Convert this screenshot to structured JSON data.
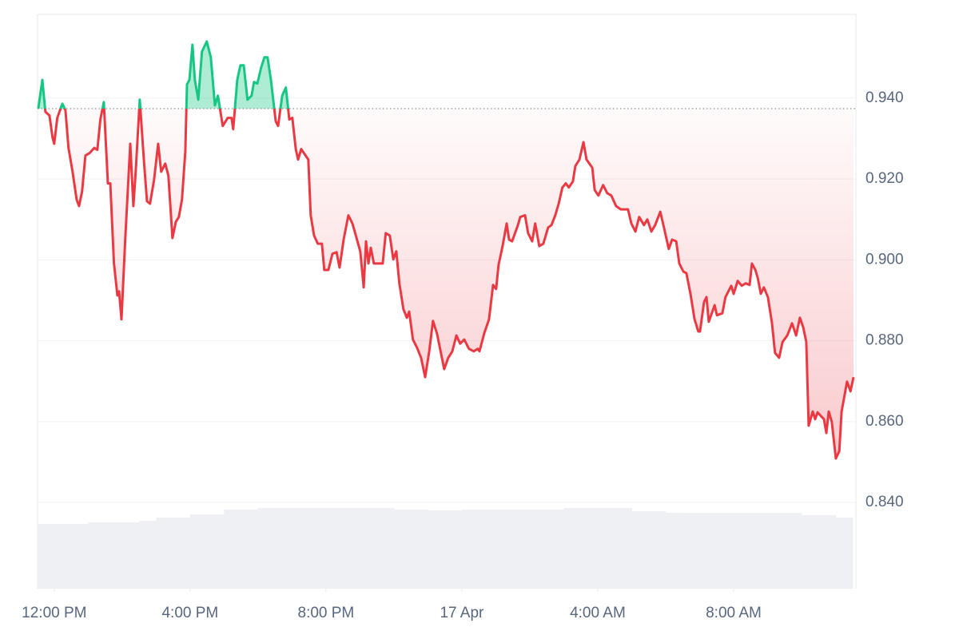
{
  "chart_data": {
    "type": "line",
    "x": [
      -0.47,
      -0.35,
      -0.26,
      -0.14,
      -0.05,
      0.0,
      0.09,
      0.24,
      0.33,
      0.42,
      0.54,
      0.66,
      0.73,
      0.82,
      0.92,
      1.04,
      1.18,
      1.27,
      1.36,
      1.46,
      1.58,
      1.65,
      1.76,
      1.86,
      1.91,
      1.98,
      2.09,
      2.24,
      2.33,
      2.4,
      2.52,
      2.64,
      2.73,
      2.82,
      2.94,
      3.06,
      3.15,
      3.27,
      3.36,
      3.48,
      3.58,
      3.67,
      3.76,
      3.86,
      3.91,
      3.98,
      4.07,
      4.14,
      4.24,
      4.35,
      4.49,
      4.61,
      4.73,
      4.82,
      4.96,
      5.11,
      5.22,
      5.27,
      5.39,
      5.48,
      5.58,
      5.69,
      5.81,
      5.88,
      5.98,
      6.09,
      6.19,
      6.28,
      6.38,
      6.52,
      6.59,
      6.71,
      6.82,
      6.92,
      7.01,
      7.11,
      7.18,
      7.27,
      7.48,
      7.55,
      7.65,
      7.76,
      7.88,
      7.95,
      8.07,
      8.19,
      8.31,
      8.4,
      8.52,
      8.66,
      8.78,
      9.01,
      9.11,
      9.18,
      9.25,
      9.32,
      9.41,
      9.67,
      9.76,
      9.88,
      9.98,
      10.07,
      10.16,
      10.28,
      10.38,
      10.45,
      10.56,
      10.68,
      10.8,
      10.92,
      11.04,
      11.15,
      11.27,
      11.48,
      11.6,
      11.72,
      11.84,
      11.95,
      12.07,
      12.21,
      12.35,
      12.47,
      12.52,
      12.66,
      12.8,
      12.92,
      13.01,
      13.08,
      13.2,
      13.32,
      13.39,
      13.48,
      13.65,
      13.72,
      13.86,
      13.95,
      14.07,
      14.16,
      14.28,
      14.4,
      14.54,
      14.64,
      14.75,
      14.85,
      14.96,
      15.06,
      15.15,
      15.27,
      15.34,
      15.46,
      15.58,
      15.67,
      15.84,
      15.91,
      16.02,
      16.16,
      16.28,
      16.4,
      16.54,
      16.68,
      16.89,
      16.99,
      17.11,
      17.22,
      17.36,
      17.46,
      17.58,
      17.69,
      17.84,
      17.95,
      18.09,
      18.19,
      18.31,
      18.4,
      18.52,
      18.61,
      18.73,
      18.85,
      18.96,
      19.01,
      19.13,
      19.2,
      19.27,
      19.44,
      19.51,
      19.67,
      19.76,
      19.93,
      20.0,
      20.12,
      20.24,
      20.35,
      20.47,
      20.54,
      20.64,
      20.71,
      20.8,
      20.89,
      21.01,
      21.13,
      21.22,
      21.34,
      21.44,
      21.58,
      21.72,
      21.84,
      21.95,
      22.05,
      22.14,
      22.21,
      22.33,
      22.4,
      22.47,
      22.59,
      22.66,
      22.73,
      22.8,
      22.89,
      23.01,
      23.11,
      23.18,
      23.34,
      23.44,
      23.53
    ],
    "values": [
      0.9374,
      0.9445,
      0.9366,
      0.9357,
      0.9303,
      0.9287,
      0.9351,
      0.9386,
      0.937,
      0.9277,
      0.9218,
      0.9149,
      0.9133,
      0.9169,
      0.9258,
      0.9264,
      0.9277,
      0.9272,
      0.9347,
      0.939,
      0.9189,
      0.9189,
      0.8991,
      0.8912,
      0.8922,
      0.8853,
      0.905,
      0.9287,
      0.9133,
      0.9218,
      0.9396,
      0.9248,
      0.9145,
      0.9139,
      0.9198,
      0.9287,
      0.9218,
      0.9238,
      0.9208,
      0.9054,
      0.9094,
      0.9106,
      0.9149,
      0.9268,
      0.9434,
      0.9445,
      0.9532,
      0.9445,
      0.9396,
      0.9515,
      0.954,
      0.9501,
      0.9382,
      0.9406,
      0.9331,
      0.9351,
      0.9351,
      0.9323,
      0.9445,
      0.9481,
      0.9481,
      0.9396,
      0.9406,
      0.944,
      0.9436,
      0.9475,
      0.9501,
      0.9501,
      0.9445,
      0.9343,
      0.9331,
      0.9406,
      0.9426,
      0.9347,
      0.9351,
      0.9274,
      0.9248,
      0.9274,
      0.9248,
      0.911,
      0.906,
      0.904,
      0.904,
      0.8975,
      0.8975,
      0.9015,
      0.9019,
      0.8981,
      0.905,
      0.911,
      0.909,
      0.9021,
      0.8932,
      0.9046,
      0.8991,
      0.903,
      0.8991,
      0.8991,
      0.9066,
      0.906,
      0.9001,
      0.9021,
      0.8942,
      0.8878,
      0.8857,
      0.8872,
      0.8803,
      0.8783,
      0.8758,
      0.871,
      0.8774,
      0.8849,
      0.8817,
      0.873,
      0.8758,
      0.8774,
      0.8813,
      0.8793,
      0.8803,
      0.878,
      0.8774,
      0.878,
      0.8774,
      0.8819,
      0.8853,
      0.8938,
      0.8928,
      0.8987,
      0.9034,
      0.909,
      0.905,
      0.9046,
      0.9086,
      0.9106,
      0.911,
      0.9066,
      0.9046,
      0.909,
      0.9034,
      0.904,
      0.908,
      0.9086,
      0.911,
      0.9139,
      0.9179,
      0.9189,
      0.9179,
      0.9194,
      0.9232,
      0.9248,
      0.9291,
      0.9248,
      0.9228,
      0.9173,
      0.9159,
      0.9185,
      0.9165,
      0.9159,
      0.9133,
      0.9125,
      0.9125,
      0.909,
      0.907,
      0.9106,
      0.9086,
      0.91,
      0.907,
      0.9086,
      0.9119,
      0.908,
      0.9027,
      0.905,
      0.9046,
      0.8991,
      0.8971,
      0.8967,
      0.8916,
      0.8853,
      0.8823,
      0.8823,
      0.8896,
      0.8908,
      0.8847,
      0.8888,
      0.8863,
      0.8868,
      0.8908,
      0.8936,
      0.8916,
      0.8948,
      0.8936,
      0.8942,
      0.8938,
      0.8991,
      0.8975,
      0.8955,
      0.8916,
      0.8932,
      0.8908,
      0.8843,
      0.877,
      0.8758,
      0.8797,
      0.8813,
      0.8843,
      0.8813,
      0.8857,
      0.8833,
      0.8797,
      0.859,
      0.8625,
      0.8606,
      0.8623,
      0.8612,
      0.8606,
      0.8572,
      0.8625,
      0.86,
      0.8509,
      0.8527,
      0.8625,
      0.8699,
      0.8675,
      0.871
    ],
    "baseline": 0.9374,
    "up_color": "#16c784",
    "down_color": "#ea3943",
    "volume": {
      "x": [
        -0.25,
        0.25,
        0.75,
        1.25,
        1.75,
        2.25,
        2.75,
        3.25,
        3.75,
        4.25,
        4.75,
        5.25,
        5.75,
        6.25,
        6.75,
        7.25,
        7.75,
        8.25,
        8.75,
        9.25,
        9.75,
        10.25,
        10.75,
        11.25,
        11.75,
        12.25,
        12.75,
        13.25,
        13.75,
        14.25,
        14.75,
        15.25,
        15.75,
        16.25,
        16.75,
        17.25,
        17.75,
        18.25,
        18.75,
        19.25,
        19.75,
        20.25,
        20.75,
        21.25,
        21.75,
        22.25,
        22.75,
        23.25
      ],
      "values": [
        67.5,
        67.5,
        67.5,
        69.2,
        69.2,
        69.2,
        70.8,
        74.2,
        74.2,
        77.5,
        77.5,
        82.5,
        82.5,
        84.2,
        84.2,
        84.2,
        84.2,
        84.2,
        84.2,
        84.2,
        84.2,
        82.5,
        82.5,
        81.7,
        81.7,
        82.5,
        82.5,
        82.5,
        82.5,
        82.5,
        82.5,
        84.2,
        84.2,
        84.2,
        84.2,
        80.8,
        80.8,
        79.2,
        79.2,
        79.2,
        79.2,
        79.2,
        79.2,
        79.2,
        79.2,
        76.7,
        76.7,
        74.2
      ],
      "vlim": [
        0,
        100
      ],
      "color": "#eef0f3"
    },
    "xlim": [
      -0.49,
      23.6
    ],
    "xticks": [
      {
        "value": 0,
        "label": "12:00 PM"
      },
      {
        "value": 4,
        "label": "4:00 PM"
      },
      {
        "value": 8,
        "label": "8:00 PM"
      },
      {
        "value": 12,
        "label": "17 Apr"
      },
      {
        "value": 16,
        "label": "4:00 AM"
      },
      {
        "value": 20,
        "label": "8:00 AM"
      }
    ],
    "ylim": [
      0.8187,
      0.9607
    ],
    "yticks": [
      {
        "value": 0.84,
        "label": "0.840"
      },
      {
        "value": 0.86,
        "label": "0.860"
      },
      {
        "value": 0.88,
        "label": "0.880"
      },
      {
        "value": 0.9,
        "label": "0.900"
      },
      {
        "value": 0.92,
        "label": "0.920"
      },
      {
        "value": 0.94,
        "label": "0.940"
      }
    ],
    "grid": true
  }
}
